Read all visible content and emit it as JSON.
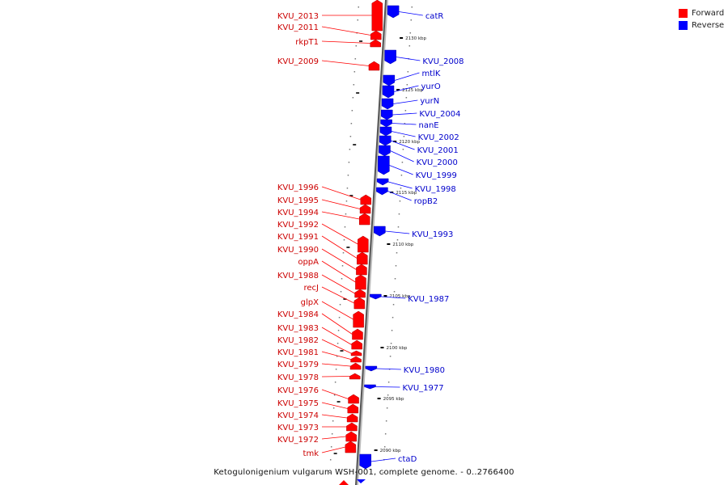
{
  "caption": "Ketogulonigenium vulgarum WSH-001, complete genome. - 0..2766400",
  "legend": {
    "forward_label": "Forward",
    "reverse_label": "Reverse",
    "forward_color": "#ff0000",
    "reverse_color": "#0000ff"
  },
  "tick_labels": [
    "2130 kbp",
    "2125 kbp",
    "2120 kbp",
    "2115 kbp",
    "2110 kbp",
    "2105 kbp",
    "2100 kbp",
    "2095 kbp",
    "2090 kbp"
  ],
  "forward_genes": [
    "KVU_2013",
    "KVU_2011",
    "rkpT1",
    "KVU_2009",
    "KVU_1996",
    "KVU_1995",
    "KVU_1994",
    "KVU_1992",
    "KVU_1991",
    "KVU_1990",
    "oppA",
    "KVU_1988",
    "recJ",
    "glpX",
    "KVU_1984",
    "KVU_1983",
    "KVU_1982",
    "KVU_1981",
    "KVU_1979",
    "KVU_1978",
    "KVU_1976",
    "KVU_1975",
    "KVU_1974",
    "KVU_1973",
    "KVU_1972",
    "tmk"
  ],
  "reverse_genes": [
    "catR",
    "KVU_2008",
    "mtlK",
    "yurO",
    "yurN",
    "KVU_2004",
    "nanE",
    "KVU_2002",
    "KVU_2001",
    "KVU_2000",
    "KVU_1999",
    "KVU_1998",
    "ropB2",
    "KVU_1993",
    "KVU_1987",
    "KVU_1980",
    "KVU_1977",
    "ctaD"
  ]
}
